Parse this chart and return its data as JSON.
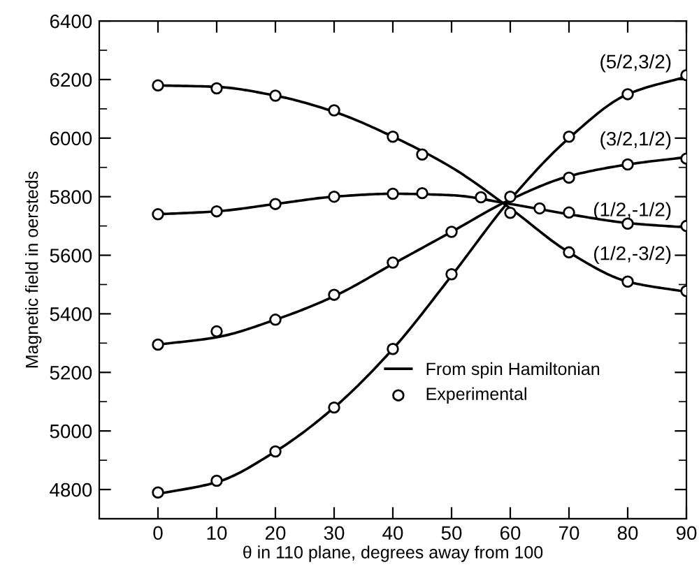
{
  "chart_data": {
    "type": "line",
    "xlabel": "θ in 110 plane, degrees away from 100",
    "ylabel": "Magnetic field in oersteds",
    "x": [
      0,
      10,
      20,
      30,
      40,
      50,
      60,
      70,
      80,
      90
    ],
    "series": [
      {
        "name": "From spin Hamiltonian",
        "color": "#000000",
        "values": [
          4785,
          4825,
          4930,
          5080,
          5280,
          5530,
          5790,
          6000,
          6150,
          6210
        ]
      },
      {
        "color": "#000000",
        "values": [
          5295,
          5320,
          5380,
          5460,
          5570,
          5680,
          5790,
          5870,
          5910,
          5935
        ]
      },
      {
        "color": "#000000",
        "values": [
          5740,
          5750,
          5775,
          5800,
          5810,
          5805,
          5775,
          5740,
          5710,
          5695
        ]
      },
      {
        "color": "#000000",
        "values": [
          6180,
          6175,
          6145,
          6090,
          6005,
          5900,
          5760,
          5610,
          5510,
          5475
        ]
      },
      {
        "name": "Experimental",
        "type": "scatter",
        "marker": "circle",
        "color": "#000000",
        "x": [
          0,
          10,
          20,
          30,
          40,
          50,
          60,
          70,
          80,
          90
        ],
        "values": [
          4790,
          4830,
          4930,
          5080,
          5280,
          5535,
          5800,
          6005,
          6150,
          6215
        ]
      },
      {
        "type": "scatter",
        "marker": "circle",
        "color": "#000000",
        "x": [
          0,
          10,
          20,
          30,
          40,
          50,
          70,
          80,
          90
        ],
        "values": [
          5295,
          5340,
          5380,
          5465,
          5575,
          5680,
          5865,
          5910,
          5930
        ]
      },
      {
        "type": "scatter",
        "marker": "circle",
        "color": "#000000",
        "x": [
          0,
          10,
          20,
          30,
          40,
          45,
          55,
          65,
          70,
          80,
          90
        ],
        "values": [
          5740,
          5750,
          5775,
          5800,
          5810,
          5812,
          5798,
          5760,
          5746,
          5708,
          5700
        ]
      },
      {
        "type": "scatter",
        "marker": "circle",
        "color": "#000000",
        "x": [
          0,
          10,
          20,
          30,
          40,
          45,
          60,
          70,
          80,
          90
        ],
        "values": [
          6180,
          6170,
          6145,
          6095,
          6005,
          5944,
          5745,
          5610,
          5510,
          5478
        ]
      }
    ],
    "annotations": [
      "(5/2,3/2)",
      "(3/2,1/2)",
      "(1/2,-1/2)",
      "(1/2,-3/2)"
    ],
    "xlim": [
      -10,
      90
    ],
    "xticks": [
      0,
      10,
      20,
      30,
      40,
      50,
      60,
      70,
      80,
      90
    ],
    "ylim": [
      4700,
      6400
    ],
    "yticks": [
      4800,
      5000,
      5200,
      5400,
      5600,
      5800,
      6000,
      6200,
      6400
    ],
    "grid": false,
    "legend": "lower right",
    "line_style": "solid"
  }
}
